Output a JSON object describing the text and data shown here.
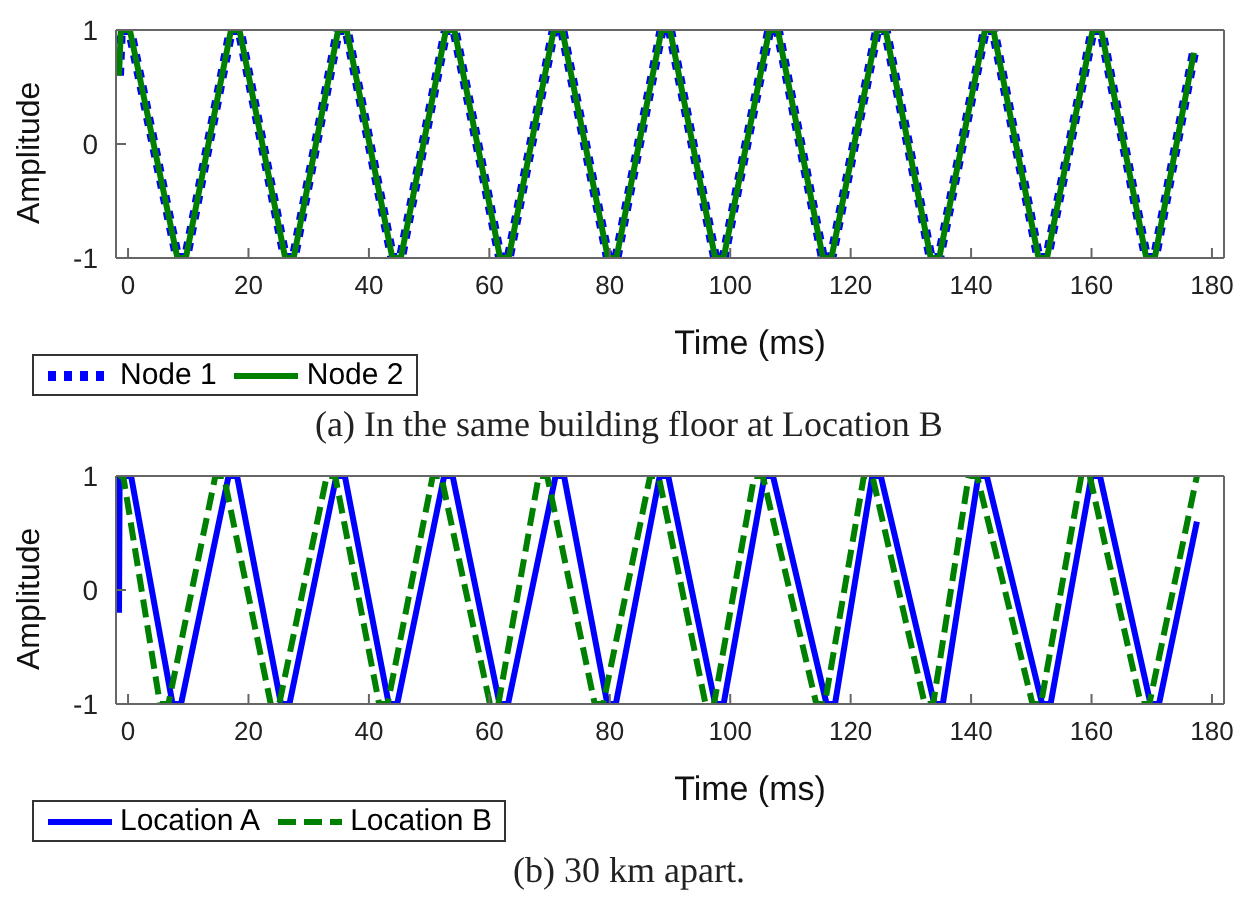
{
  "chart_data": [
    {
      "type": "line",
      "title": "(a) In the same building floor at Location B",
      "xlabel": "Time (ms)",
      "ylabel": "Amplitude",
      "xlim": [
        -2,
        182
      ],
      "xticks": [
        0,
        20,
        40,
        60,
        80,
        100,
        120,
        140,
        160,
        180
      ],
      "ylim": [
        -1,
        1
      ],
      "yticks": [
        -1,
        0,
        1
      ],
      "legend": "bottom left",
      "marker": "none",
      "series": [
        {
          "name": "Node 1",
          "color": "#0000ff",
          "line_style": "dotted",
          "x": [
            -1.5,
            -1.2,
            0.3,
            8.2,
            9.6,
            17.1,
            18.5,
            26.1,
            27.5,
            34.9,
            36.3,
            43.9,
            45.3,
            52.8,
            54.2,
            61.8,
            63.2,
            70.7,
            72.1,
            79.7,
            81.1,
            88.6,
            90,
            97.5,
            98.9,
            106.5,
            107.9,
            115.4,
            116.8,
            124.4,
            125.8,
            133.3,
            134.7,
            142.3,
            143.7,
            151.2,
            152.6,
            160.2,
            161.6,
            169.1,
            170.5,
            177
          ],
          "values": [
            0.6,
            1,
            1,
            -1,
            -1,
            1,
            1,
            -1,
            -1,
            1,
            1,
            -1,
            -1,
            1,
            1,
            -1,
            -1,
            1,
            1,
            -1,
            -1,
            1,
            1,
            -1,
            -1,
            1,
            1,
            -1,
            -1,
            1,
            1,
            -1,
            -1,
            1,
            1,
            -1,
            -1,
            1,
            1,
            -1,
            -1,
            0.8
          ]
        },
        {
          "name": "Node 2",
          "color": "#008000",
          "line_style": "solid",
          "x": [
            -1.5,
            -1.2,
            0.3,
            8.2,
            9.6,
            17.1,
            18.5,
            26.1,
            27.5,
            34.9,
            36.3,
            43.9,
            45.3,
            52.8,
            54.2,
            61.8,
            63.2,
            70.7,
            72.1,
            79.7,
            81.1,
            88.6,
            90,
            97.5,
            98.9,
            106.5,
            107.9,
            115.4,
            116.8,
            124.4,
            125.8,
            133.3,
            134.7,
            142.3,
            143.7,
            151.2,
            152.6,
            160.2,
            161.6,
            169.1,
            170.5,
            177
          ],
          "values": [
            0.6,
            1,
            1,
            -1,
            -1,
            1,
            1,
            -1,
            -1,
            1,
            1,
            -1,
            -1,
            1,
            1,
            -1,
            -1,
            1,
            1,
            -1,
            -1,
            1,
            1,
            -1,
            -1,
            1,
            1,
            -1,
            -1,
            1,
            1,
            -1,
            -1,
            1,
            1,
            -1,
            -1,
            1,
            1,
            -1,
            -1,
            0.8
          ]
        }
      ]
    },
    {
      "type": "line",
      "title": "(b) 30 km apart.",
      "xlabel": "Time (ms)",
      "ylabel": "Amplitude",
      "xlim": [
        -2,
        182
      ],
      "xticks": [
        0,
        20,
        40,
        60,
        80,
        100,
        120,
        140,
        160,
        180
      ],
      "ylim": [
        -1,
        1
      ],
      "yticks": [
        -1,
        0,
        1
      ],
      "legend": "bottom left",
      "marker": "none",
      "series": [
        {
          "name": "Location A",
          "color": "#0000ff",
          "line_style": "solid",
          "x": [
            -1.5,
            -1.4,
            0.5,
            7.4,
            8.8,
            16.7,
            18.1,
            25.4,
            26.8,
            34.6,
            36,
            43.3,
            44.7,
            52.5,
            53.9,
            61.7,
            63.1,
            71,
            72.4,
            79.6,
            81,
            88.3,
            89.7,
            97.5,
            98.9,
            105.7,
            107.1,
            116,
            117.4,
            123.6,
            125,
            133.9,
            135.3,
            141.2,
            142.6,
            151.8,
            153.2,
            160,
            161.4,
            169.8,
            171.2,
            177.5
          ],
          "values": [
            -0.2,
            1,
            1,
            -1,
            -1,
            1,
            1,
            -1,
            -1,
            1,
            1,
            -1,
            -1,
            1,
            1,
            -1,
            -1,
            1,
            1,
            -1,
            -1,
            1,
            1,
            -1,
            -1,
            1,
            1,
            -1,
            -1,
            1,
            1,
            -1,
            -1,
            1,
            1,
            -1,
            -1,
            1,
            1,
            -1,
            -1,
            0.6
          ]
        },
        {
          "name": "Location B",
          "color": "#008000",
          "line_style": "dashed",
          "x": [
            -1.6,
            -0.8,
            5.3,
            6.7,
            14.5,
            15.9,
            23.7,
            25.1,
            33,
            34.4,
            41.7,
            43.1,
            50.6,
            52,
            60.1,
            61.5,
            68.2,
            69.6,
            77.5,
            78.9,
            86.7,
            88.1,
            95.9,
            97.3,
            104,
            105.4,
            114.3,
            115.7,
            122.2,
            123.6,
            132.3,
            133.7,
            139.6,
            141,
            150.2,
            151.6,
            158.3,
            159.7,
            168.2,
            169.6,
            177.5
          ],
          "values": [
            1,
            1,
            -1,
            -1,
            1,
            1,
            -1,
            -1,
            1,
            1,
            -1,
            -1,
            1,
            1,
            -1,
            -1,
            1,
            1,
            -1,
            -1,
            1,
            1,
            -1,
            -1,
            1,
            1,
            -1,
            -1,
            1,
            1,
            -1,
            -1,
            1,
            1,
            -1,
            -1,
            1,
            1,
            -1,
            -1,
            1
          ]
        }
      ]
    }
  ]
}
